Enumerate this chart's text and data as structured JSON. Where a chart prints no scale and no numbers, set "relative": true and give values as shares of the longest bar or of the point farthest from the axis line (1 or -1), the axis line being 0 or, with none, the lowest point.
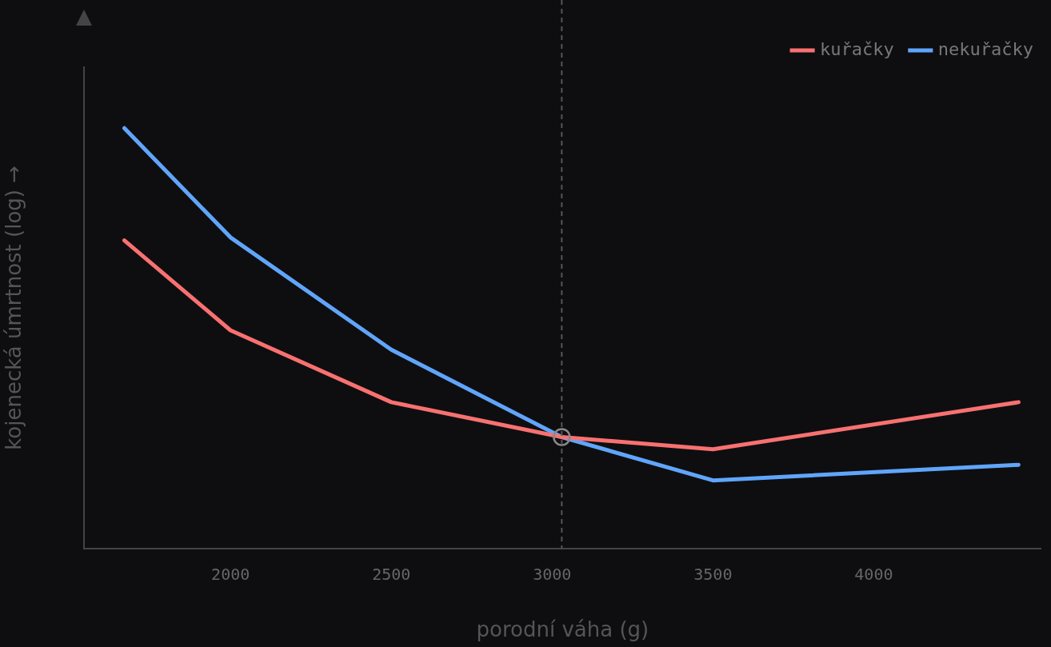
{
  "chart_data": {
    "type": "line",
    "relative": true,
    "xlabel": "porodní váha (g)",
    "ylabel": "kojenecká úmrtnost (log) →",
    "xlim": [
      1545,
      4520
    ],
    "xticks": [
      2000,
      2500,
      3000,
      3500,
      4000
    ],
    "grid": false,
    "legend": "top right",
    "marker": "none",
    "line_style": "solid",
    "ref_lines": [
      {
        "axis": "x",
        "value": 3030,
        "color": "#555555",
        "line_style": "dashed"
      }
    ],
    "series": [
      {
        "name": "kuřačky",
        "color": "#f87171",
        "x": [
          1670,
          2000,
          2500,
          3030,
          3500,
          4450
        ],
        "values": [
          0.733,
          0.519,
          0.348,
          0.265,
          0.236,
          0.348
        ]
      },
      {
        "name": "nekuřačky",
        "color": "#60a5fa",
        "x": [
          1670,
          2000,
          2500,
          3030,
          3500,
          4450
        ],
        "values": [
          1,
          0.74,
          0.473,
          0.265,
          0.162,
          0.199
        ]
      },
      {
        "type": "scatter",
        "color": "#888888",
        "marker": "circle",
        "x": [
          3030
        ],
        "values": [
          0.265
        ]
      }
    ]
  }
}
